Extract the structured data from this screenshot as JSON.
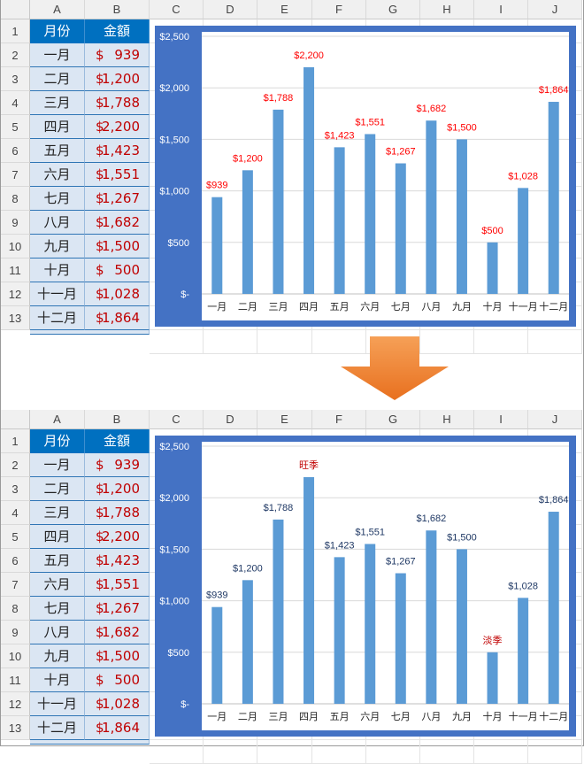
{
  "columns": [
    "A",
    "B",
    "C",
    "D",
    "E",
    "F",
    "G",
    "H",
    "I",
    "J"
  ],
  "rows": [
    "1",
    "2",
    "3",
    "4",
    "5",
    "6",
    "7",
    "8",
    "9",
    "10",
    "11",
    "12",
    "13"
  ],
  "table": {
    "header": {
      "month": "月份",
      "amount": "金額"
    },
    "currency_symbol": "$",
    "rows": [
      {
        "month": "一月",
        "amount": "939"
      },
      {
        "month": "二月",
        "amount": "1,200"
      },
      {
        "month": "三月",
        "amount": "1,788"
      },
      {
        "month": "四月",
        "amount": "2,200"
      },
      {
        "month": "五月",
        "amount": "1,423"
      },
      {
        "month": "六月",
        "amount": "1,551"
      },
      {
        "month": "七月",
        "amount": "1,267"
      },
      {
        "month": "八月",
        "amount": "1,682"
      },
      {
        "month": "九月",
        "amount": "1,500"
      },
      {
        "month": "十月",
        "amount": "500"
      },
      {
        "month": "十一月",
        "amount": "1,028"
      },
      {
        "month": "十二月",
        "amount": "1,864"
      }
    ]
  },
  "colors": {
    "header_fill": "#0070c0",
    "table_fill": "#dbe6f3",
    "amount_text": "#c00000",
    "chart_border": "#4472c4",
    "bar": "#5b9bd5",
    "label_red": "#ff0000",
    "label_navy": "#1f3864",
    "label_darkred": "#c00000",
    "arrow": "#ed7d31"
  },
  "chart_data": [
    {
      "type": "bar",
      "categories": [
        "一月",
        "二月",
        "三月",
        "四月",
        "五月",
        "六月",
        "七月",
        "八月",
        "九月",
        "十月",
        "十一月",
        "十二月"
      ],
      "values": [
        939,
        1200,
        1788,
        2200,
        1423,
        1551,
        1267,
        1682,
        1500,
        500,
        1028,
        1864
      ],
      "data_labels": [
        "$939",
        "$1,200",
        "$1,788",
        "$2,200",
        "$1,423",
        "$1,551",
        "$1,267",
        "$1,682",
        "$1,500",
        "$500",
        "$1,028",
        "$1,864"
      ],
      "label_color": "#ff0000",
      "ylim": [
        0,
        2500
      ],
      "yticks": [
        0,
        500,
        1000,
        1500,
        2000,
        2500
      ],
      "ytick_labels": [
        "$-",
        "$500",
        "$1,000",
        "$1,500",
        "$2,000",
        "$2,500"
      ],
      "grid": true
    },
    {
      "type": "bar",
      "categories": [
        "一月",
        "二月",
        "三月",
        "四月",
        "五月",
        "六月",
        "七月",
        "八月",
        "九月",
        "十月",
        "十一月",
        "十二月"
      ],
      "values": [
        939,
        1200,
        1788,
        2200,
        1423,
        1551,
        1267,
        1682,
        1500,
        500,
        1028,
        1864
      ],
      "data_labels": [
        "$939",
        "$1,200",
        "$1,788",
        "旺季",
        "$1,423",
        "$1,551",
        "$1,267",
        "$1,682",
        "$1,500",
        "淡季",
        "$1,028",
        "$1,864"
      ],
      "label_color": "#1f3864",
      "highlight_label_color": "#c00000",
      "highlight_indices": [
        3,
        9
      ],
      "ylim": [
        0,
        2500
      ],
      "yticks": [
        0,
        500,
        1000,
        1500,
        2000,
        2500
      ],
      "ytick_labels": [
        "$-",
        "$500",
        "$1,000",
        "$1,500",
        "$2,000",
        "$2,500"
      ],
      "grid": true
    }
  ]
}
